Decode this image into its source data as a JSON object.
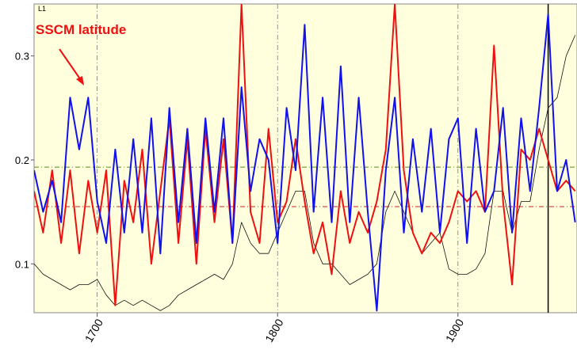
{
  "chart_data": {
    "type": "line",
    "corner_label": "L1",
    "annotation": "SSCM latitude",
    "annotation_color": "#ee1111",
    "x": [
      1665,
      1670,
      1675,
      1680,
      1685,
      1690,
      1695,
      1700,
      1705,
      1710,
      1715,
      1720,
      1725,
      1730,
      1735,
      1740,
      1745,
      1750,
      1755,
      1760,
      1765,
      1770,
      1775,
      1780,
      1785,
      1790,
      1795,
      1800,
      1805,
      1810,
      1815,
      1820,
      1825,
      1830,
      1835,
      1840,
      1845,
      1850,
      1855,
      1860,
      1865,
      1870,
      1875,
      1880,
      1885,
      1890,
      1895,
      1900,
      1905,
      1910,
      1915,
      1920,
      1925,
      1930,
      1935,
      1940,
      1945,
      1950,
      1955,
      1960,
      1965
    ],
    "series": [
      {
        "color": "#111111",
        "width": 0.8,
        "values": [
          0.1,
          0.09,
          0.085,
          0.08,
          0.075,
          0.08,
          0.08,
          0.085,
          0.07,
          0.06,
          0.065,
          0.06,
          0.065,
          0.06,
          0.055,
          0.06,
          0.07,
          0.075,
          0.08,
          0.085,
          0.09,
          0.085,
          0.1,
          0.14,
          0.12,
          0.11,
          0.11,
          0.13,
          0.15,
          0.17,
          0.17,
          0.12,
          0.1,
          0.1,
          0.09,
          0.08,
          0.085,
          0.09,
          0.1,
          0.15,
          0.17,
          0.15,
          0.13,
          0.11,
          0.12,
          0.13,
          0.095,
          0.09,
          0.09,
          0.095,
          0.11,
          0.17,
          0.17,
          0.13,
          0.16,
          0.16,
          0.21,
          0.25,
          0.26,
          0.3,
          0.32
        ]
      },
      {
        "color": "#ee1111",
        "width": 2,
        "values": [
          0.17,
          0.13,
          0.19,
          0.12,
          0.19,
          0.11,
          0.18,
          0.13,
          0.19,
          0.06,
          0.18,
          0.14,
          0.21,
          0.1,
          0.17,
          0.24,
          0.12,
          0.22,
          0.1,
          0.23,
          0.14,
          0.22,
          0.12,
          0.35,
          0.15,
          0.12,
          0.23,
          0.14,
          0.16,
          0.22,
          0.16,
          0.11,
          0.14,
          0.09,
          0.17,
          0.12,
          0.15,
          0.13,
          0.16,
          0.21,
          0.35,
          0.19,
          0.13,
          0.11,
          0.13,
          0.12,
          0.14,
          0.17,
          0.16,
          0.17,
          0.15,
          0.31,
          0.16,
          0.08,
          0.21,
          0.2,
          0.23,
          0.2,
          0.17,
          0.18,
          0.17
        ]
      },
      {
        "color": "#1111ee",
        "width": 2,
        "values": [
          0.19,
          0.15,
          0.18,
          0.14,
          0.26,
          0.21,
          0.26,
          0.16,
          0.12,
          0.21,
          0.13,
          0.22,
          0.13,
          0.24,
          0.11,
          0.25,
          0.14,
          0.23,
          0.12,
          0.24,
          0.15,
          0.24,
          0.12,
          0.27,
          0.17,
          0.22,
          0.2,
          0.12,
          0.25,
          0.19,
          0.33,
          0.15,
          0.26,
          0.14,
          0.29,
          0.14,
          0.26,
          0.15,
          0.055,
          0.19,
          0.26,
          0.13,
          0.22,
          0.15,
          0.23,
          0.13,
          0.22,
          0.24,
          0.12,
          0.23,
          0.15,
          0.17,
          0.25,
          0.13,
          0.24,
          0.17,
          0.25,
          0.34,
          0.17,
          0.2,
          0.14
        ]
      }
    ],
    "xlim": [
      1665,
      1966
    ],
    "ylim": [
      0.053,
      0.35
    ],
    "xticks": [
      1700,
      1800,
      1900
    ],
    "yticks": [
      0.1,
      0.2,
      0.3
    ],
    "grid": true,
    "hlines": [
      {
        "value": 0.193,
        "color": "#5a8a1a"
      },
      {
        "value": 0.155,
        "color": "#cc2222"
      }
    ],
    "vlines": [
      {
        "value": 1950,
        "color": "#000000"
      }
    ],
    "background": "#ffffdd"
  }
}
